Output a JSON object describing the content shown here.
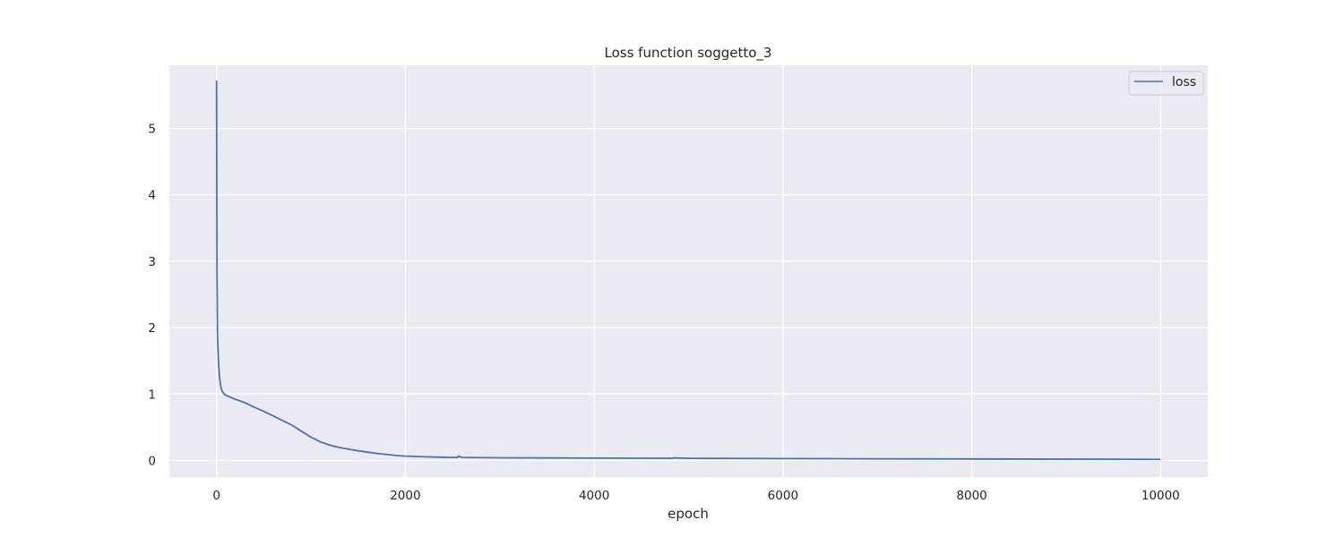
{
  "chart_data": {
    "type": "line",
    "title": "Loss function soggetto_3",
    "xlabel": "epoch",
    "ylabel": "",
    "xlim": [
      -500,
      10500
    ],
    "ylim": [
      -0.25,
      5.95
    ],
    "xticks": [
      0,
      2000,
      4000,
      6000,
      8000,
      10000
    ],
    "yticks": [
      0,
      1,
      2,
      3,
      4,
      5
    ],
    "grid": true,
    "legend_position": "top-right",
    "colors": {
      "plot_bg": "#eaeaf2",
      "grid": "#ffffff",
      "line": "#4c72b0"
    },
    "series": [
      {
        "name": "loss",
        "x": [
          0,
          2,
          5,
          10,
          20,
          30,
          40,
          50,
          60,
          80,
          100,
          150,
          200,
          300,
          400,
          500,
          600,
          700,
          800,
          900,
          1000,
          1100,
          1200,
          1300,
          1400,
          1500,
          1600,
          1700,
          1800,
          1900,
          2000,
          2200,
          2400,
          2500,
          2550,
          2560,
          2600,
          3000,
          3500,
          4000,
          4500,
          4830,
          4850,
          5000,
          6000,
          7000,
          8000,
          9000,
          10000
        ],
        "y": [
          5.72,
          4.5,
          2.8,
          1.9,
          1.5,
          1.28,
          1.15,
          1.08,
          1.04,
          1.0,
          0.98,
          0.95,
          0.92,
          0.87,
          0.8,
          0.74,
          0.67,
          0.6,
          0.53,
          0.44,
          0.35,
          0.28,
          0.23,
          0.195,
          0.17,
          0.145,
          0.125,
          0.105,
          0.09,
          0.075,
          0.065,
          0.055,
          0.047,
          0.045,
          0.044,
          0.065,
          0.045,
          0.04,
          0.037,
          0.035,
          0.033,
          0.032,
          0.038,
          0.032,
          0.028,
          0.025,
          0.022,
          0.019,
          0.016
        ]
      }
    ]
  }
}
